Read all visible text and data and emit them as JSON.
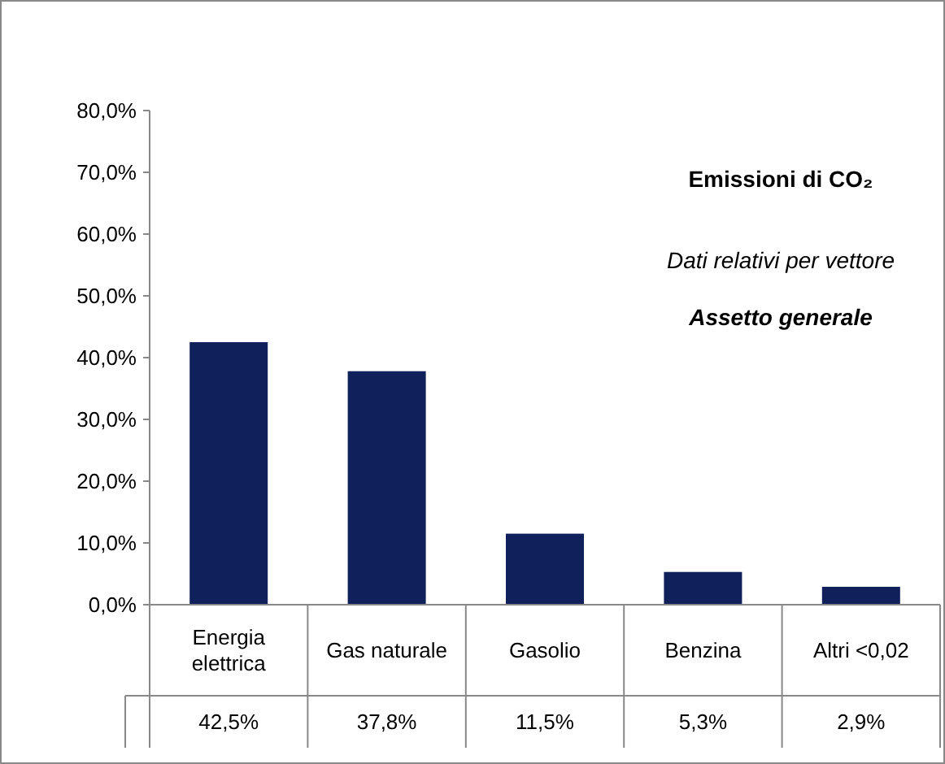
{
  "chart_data": {
    "type": "bar",
    "title": "Emissioni di CO₂",
    "subtitle": "Dati relativi per vettore",
    "annotations": [
      "Assetto generale"
    ],
    "categories": [
      "Energia elettrica",
      "Gas naturale",
      "Gasolio",
      "Benzina",
      "Altri <0,02"
    ],
    "values": [
      42.5,
      37.8,
      11.5,
      5.3,
      2.9
    ],
    "value_labels": [
      "42,5%",
      "37,8%",
      "11,5%",
      "5,3%",
      "2,9%"
    ],
    "color": "#10205a",
    "ylim": [
      0,
      80
    ],
    "yticks": [
      {
        "value": 0,
        "label": "0,0%"
      },
      {
        "value": 10,
        "label": "10,0%"
      },
      {
        "value": 20,
        "label": "20,0%"
      },
      {
        "value": 30,
        "label": "30,0%"
      },
      {
        "value": 40,
        "label": "40,0%"
      },
      {
        "value": 50,
        "label": "50,0%"
      },
      {
        "value": 60,
        "label": "60,0%"
      },
      {
        "value": 70,
        "label": "70,0%"
      },
      {
        "value": 80,
        "label": "80,0%"
      }
    ],
    "grid": false
  }
}
